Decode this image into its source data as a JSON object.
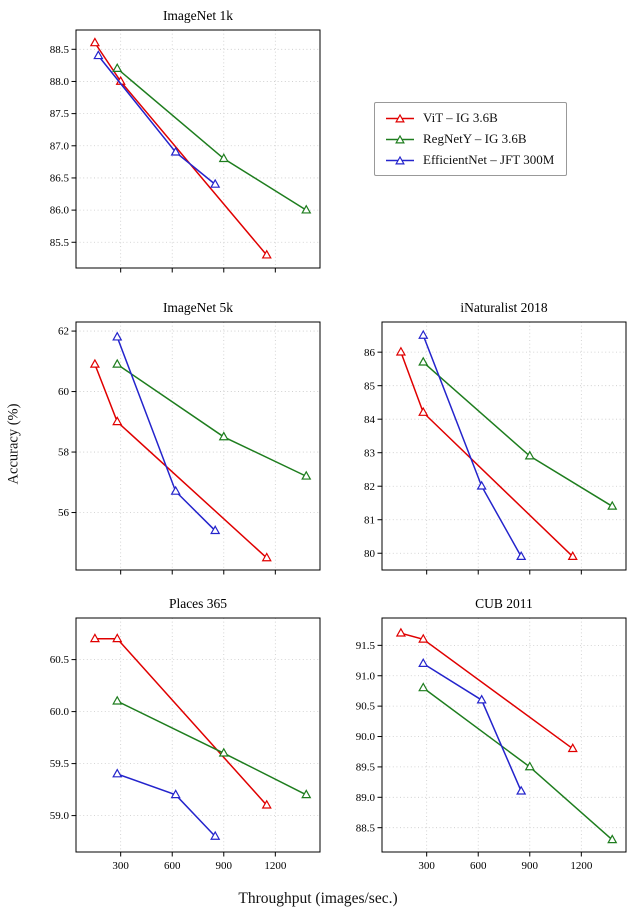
{
  "figure": {
    "xlabel": "Throughput (images/sec.)",
    "ylabel": "Accuracy (%)"
  },
  "legend": {
    "items": [
      {
        "label": "ViT – IG 3.6B",
        "color": "#e00000"
      },
      {
        "label": "RegNetY – IG 3.6B",
        "color": "#1e7d1e"
      },
      {
        "label": "EfficientNet – JFT 300M",
        "color": "#2424cc"
      }
    ]
  },
  "chart_data": [
    {
      "id": "imagenet-1k",
      "type": "line",
      "title": "ImageNet 1k",
      "xlabel": "",
      "ylabel": "",
      "xlim": [
        40,
        1460
      ],
      "xticks": [
        300,
        600,
        900,
        1200
      ],
      "show_xtick_labels": false,
      "ylim": [
        85.1,
        88.8
      ],
      "yticks": [
        85.5,
        86.0,
        86.5,
        87.0,
        87.5,
        88.0,
        88.5
      ],
      "ytick_decimals": 1,
      "grid": true,
      "series": [
        {
          "name": "ViT – IG 3.6B",
          "color": "#e00000",
          "marker": "triangle",
          "points": [
            [
              150,
              88.6
            ],
            [
              300,
              88.0
            ],
            [
              1150,
              85.3
            ]
          ]
        },
        {
          "name": "RegNetY – IG 3.6B",
          "color": "#1e7d1e",
          "marker": "triangle",
          "points": [
            [
              280,
              88.2
            ],
            [
              900,
              86.8
            ],
            [
              1380,
              86.0
            ]
          ]
        },
        {
          "name": "EfficientNet – JFT 300M",
          "color": "#2424cc",
          "marker": "triangle",
          "points": [
            [
              170,
              88.4
            ],
            [
              620,
              86.9
            ],
            [
              850,
              86.4
            ]
          ]
        }
      ]
    },
    {
      "id": "imagenet-5k",
      "type": "line",
      "title": "ImageNet 5k",
      "xlabel": "",
      "ylabel": "",
      "xlim": [
        40,
        1460
      ],
      "xticks": [
        300,
        600,
        900,
        1200
      ],
      "show_xtick_labels": false,
      "ylim": [
        54.1,
        62.3
      ],
      "yticks": [
        56,
        58,
        60,
        62
      ],
      "ytick_decimals": 0,
      "grid": true,
      "series": [
        {
          "name": "ViT – IG 3.6B",
          "color": "#e00000",
          "marker": "triangle",
          "points": [
            [
              150,
              60.9
            ],
            [
              280,
              59.0
            ],
            [
              1150,
              54.5
            ]
          ]
        },
        {
          "name": "RegNetY – IG 3.6B",
          "color": "#1e7d1e",
          "marker": "triangle",
          "points": [
            [
              280,
              60.9
            ],
            [
              900,
              58.5
            ],
            [
              1380,
              57.2
            ]
          ]
        },
        {
          "name": "EfficientNet – JFT 300M",
          "color": "#2424cc",
          "marker": "triangle",
          "points": [
            [
              280,
              61.8
            ],
            [
              620,
              56.7
            ],
            [
              850,
              55.4
            ]
          ]
        }
      ]
    },
    {
      "id": "inaturalist-2018",
      "type": "line",
      "title": "iNaturalist 2018",
      "xlabel": "",
      "ylabel": "",
      "xlim": [
        40,
        1460
      ],
      "xticks": [
        300,
        600,
        900,
        1200
      ],
      "show_xtick_labels": false,
      "ylim": [
        79.5,
        86.9
      ],
      "yticks": [
        80,
        81,
        82,
        83,
        84,
        85,
        86
      ],
      "ytick_decimals": 0,
      "grid": true,
      "series": [
        {
          "name": "ViT – IG 3.6B",
          "color": "#e00000",
          "marker": "triangle",
          "points": [
            [
              150,
              86.0
            ],
            [
              280,
              84.2
            ],
            [
              1150,
              79.9
            ]
          ]
        },
        {
          "name": "RegNetY – IG 3.6B",
          "color": "#1e7d1e",
          "marker": "triangle",
          "points": [
            [
              280,
              85.7
            ],
            [
              900,
              82.9
            ],
            [
              1380,
              81.4
            ]
          ]
        },
        {
          "name": "EfficientNet – JFT 300M",
          "color": "#2424cc",
          "marker": "triangle",
          "points": [
            [
              280,
              86.5
            ],
            [
              620,
              82.0
            ],
            [
              850,
              79.9
            ]
          ]
        }
      ]
    },
    {
      "id": "places-365",
      "type": "line",
      "title": "Places 365",
      "xlabel": "",
      "ylabel": "",
      "xlim": [
        40,
        1460
      ],
      "xticks": [
        300,
        600,
        900,
        1200
      ],
      "show_xtick_labels": true,
      "ylim": [
        58.65,
        60.9
      ],
      "yticks": [
        59.0,
        59.5,
        60.0,
        60.5
      ],
      "ytick_decimals": 1,
      "grid": true,
      "series": [
        {
          "name": "ViT – IG 3.6B",
          "color": "#e00000",
          "marker": "triangle",
          "points": [
            [
              150,
              60.7
            ],
            [
              280,
              60.7
            ],
            [
              1150,
              59.1
            ]
          ]
        },
        {
          "name": "RegNetY – IG 3.6B",
          "color": "#1e7d1e",
          "marker": "triangle",
          "points": [
            [
              280,
              60.1
            ],
            [
              900,
              59.6
            ],
            [
              1380,
              59.2
            ]
          ]
        },
        {
          "name": "EfficientNet – JFT 300M",
          "color": "#2424cc",
          "marker": "triangle",
          "points": [
            [
              280,
              59.4
            ],
            [
              620,
              59.2
            ],
            [
              850,
              58.8
            ]
          ]
        }
      ]
    },
    {
      "id": "cub-2011",
      "type": "line",
      "title": "CUB 2011",
      "xlabel": "",
      "ylabel": "",
      "xlim": [
        40,
        1460
      ],
      "xticks": [
        300,
        600,
        900,
        1200
      ],
      "show_xtick_labels": true,
      "ylim": [
        88.1,
        91.95
      ],
      "yticks": [
        88.5,
        89.0,
        89.5,
        90.0,
        90.5,
        91.0,
        91.5
      ],
      "ytick_decimals": 1,
      "grid": true,
      "series": [
        {
          "name": "ViT – IG 3.6B",
          "color": "#e00000",
          "marker": "triangle",
          "points": [
            [
              150,
              91.7
            ],
            [
              280,
              91.6
            ],
            [
              1150,
              89.8
            ]
          ]
        },
        {
          "name": "RegNetY – IG 3.6B",
          "color": "#1e7d1e",
          "marker": "triangle",
          "points": [
            [
              280,
              90.8
            ],
            [
              900,
              89.5
            ],
            [
              1380,
              88.3
            ]
          ]
        },
        {
          "name": "EfficientNet – JFT 300M",
          "color": "#2424cc",
          "marker": "triangle",
          "points": [
            [
              280,
              91.2
            ],
            [
              620,
              90.6
            ],
            [
              850,
              89.1
            ]
          ]
        }
      ]
    }
  ]
}
